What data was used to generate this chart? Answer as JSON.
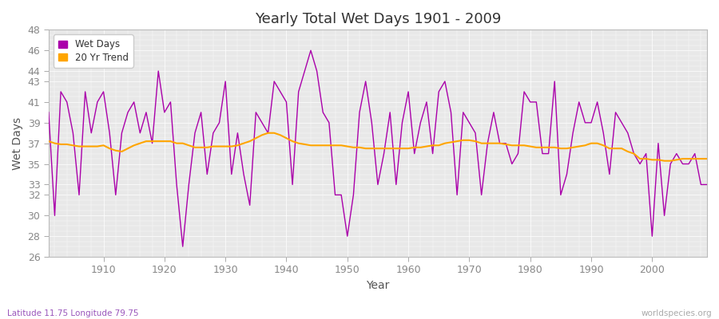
{
  "title": "Yearly Total Wet Days 1901 - 2009",
  "xlabel": "Year",
  "ylabel": "Wet Days",
  "subtitle_left": "Latitude 11.75 Longitude 79.75",
  "subtitle_right": "worldspecies.org",
  "ylim": [
    26,
    48
  ],
  "yticks": [
    26,
    28,
    30,
    32,
    33,
    35,
    37,
    39,
    41,
    43,
    44,
    46,
    48
  ],
  "wet_days_color": "#aa00aa",
  "trend_color": "#ffa500",
  "fig_bg_color": "#ffffff",
  "plot_bg_color": "#e8e8e8",
  "years": [
    1901,
    1902,
    1903,
    1904,
    1905,
    1906,
    1907,
    1908,
    1909,
    1910,
    1911,
    1912,
    1913,
    1914,
    1915,
    1916,
    1917,
    1918,
    1919,
    1920,
    1921,
    1922,
    1923,
    1924,
    1925,
    1926,
    1927,
    1928,
    1929,
    1930,
    1931,
    1932,
    1933,
    1934,
    1935,
    1936,
    1937,
    1938,
    1939,
    1940,
    1941,
    1942,
    1943,
    1944,
    1945,
    1946,
    1947,
    1948,
    1949,
    1950,
    1951,
    1952,
    1953,
    1954,
    1955,
    1956,
    1957,
    1958,
    1959,
    1960,
    1961,
    1962,
    1963,
    1964,
    1965,
    1966,
    1967,
    1968,
    1969,
    1970,
    1971,
    1972,
    1973,
    1974,
    1975,
    1976,
    1977,
    1978,
    1979,
    1980,
    1981,
    1982,
    1983,
    1984,
    1985,
    1986,
    1987,
    1988,
    1989,
    1990,
    1991,
    1992,
    1993,
    1994,
    1995,
    1996,
    1997,
    1998,
    1999,
    2000,
    2001,
    2002,
    2003,
    2004,
    2005,
    2006,
    2007,
    2008,
    2009
  ],
  "wet_days": [
    40,
    30,
    42,
    41,
    38,
    32,
    42,
    38,
    41,
    42,
    38,
    32,
    38,
    40,
    41,
    38,
    40,
    37,
    44,
    40,
    41,
    33,
    27,
    33,
    38,
    40,
    34,
    38,
    39,
    43,
    34,
    38,
    34,
    31,
    40,
    39,
    38,
    43,
    42,
    41,
    33,
    42,
    44,
    46,
    44,
    40,
    39,
    32,
    32,
    28,
    32,
    40,
    43,
    39,
    33,
    36,
    40,
    33,
    39,
    42,
    36,
    39,
    41,
    36,
    42,
    43,
    40,
    32,
    40,
    39,
    38,
    32,
    37,
    40,
    37,
    37,
    35,
    36,
    42,
    41,
    41,
    36,
    36,
    43,
    32,
    34,
    38,
    41,
    39,
    39,
    41,
    38,
    34,
    40,
    39,
    38,
    36,
    35,
    36,
    28,
    37,
    30,
    35,
    36,
    35,
    35,
    36,
    33,
    33
  ],
  "trend": [
    37.2,
    37.0,
    36.9,
    36.9,
    36.8,
    36.7,
    36.7,
    36.7,
    36.7,
    36.8,
    36.5,
    36.3,
    36.2,
    36.5,
    36.8,
    37.0,
    37.2,
    37.2,
    37.2,
    37.2,
    37.2,
    37.0,
    37.0,
    36.8,
    36.6,
    36.6,
    36.6,
    36.7,
    36.7,
    36.7,
    36.7,
    36.8,
    37.0,
    37.2,
    37.5,
    37.8,
    38.0,
    38.0,
    37.8,
    37.5,
    37.2,
    37.0,
    36.9,
    36.8,
    36.8,
    36.8,
    36.8,
    36.8,
    36.8,
    36.7,
    36.6,
    36.6,
    36.5,
    36.5,
    36.5,
    36.5,
    36.5,
    36.5,
    36.5,
    36.5,
    36.6,
    36.6,
    36.7,
    36.8,
    36.8,
    37.0,
    37.1,
    37.2,
    37.3,
    37.3,
    37.2,
    37.0,
    37.0,
    37.0,
    37.0,
    36.9,
    36.8,
    36.8,
    36.8,
    36.7,
    36.6,
    36.6,
    36.6,
    36.6,
    36.5,
    36.5,
    36.6,
    36.7,
    36.8,
    37.0,
    37.0,
    36.8,
    36.5,
    36.5,
    36.5,
    36.2,
    36.0,
    35.5,
    35.5,
    35.4,
    35.4,
    35.3,
    35.3,
    35.4,
    35.5,
    35.5,
    35.5,
    35.5,
    35.5
  ]
}
